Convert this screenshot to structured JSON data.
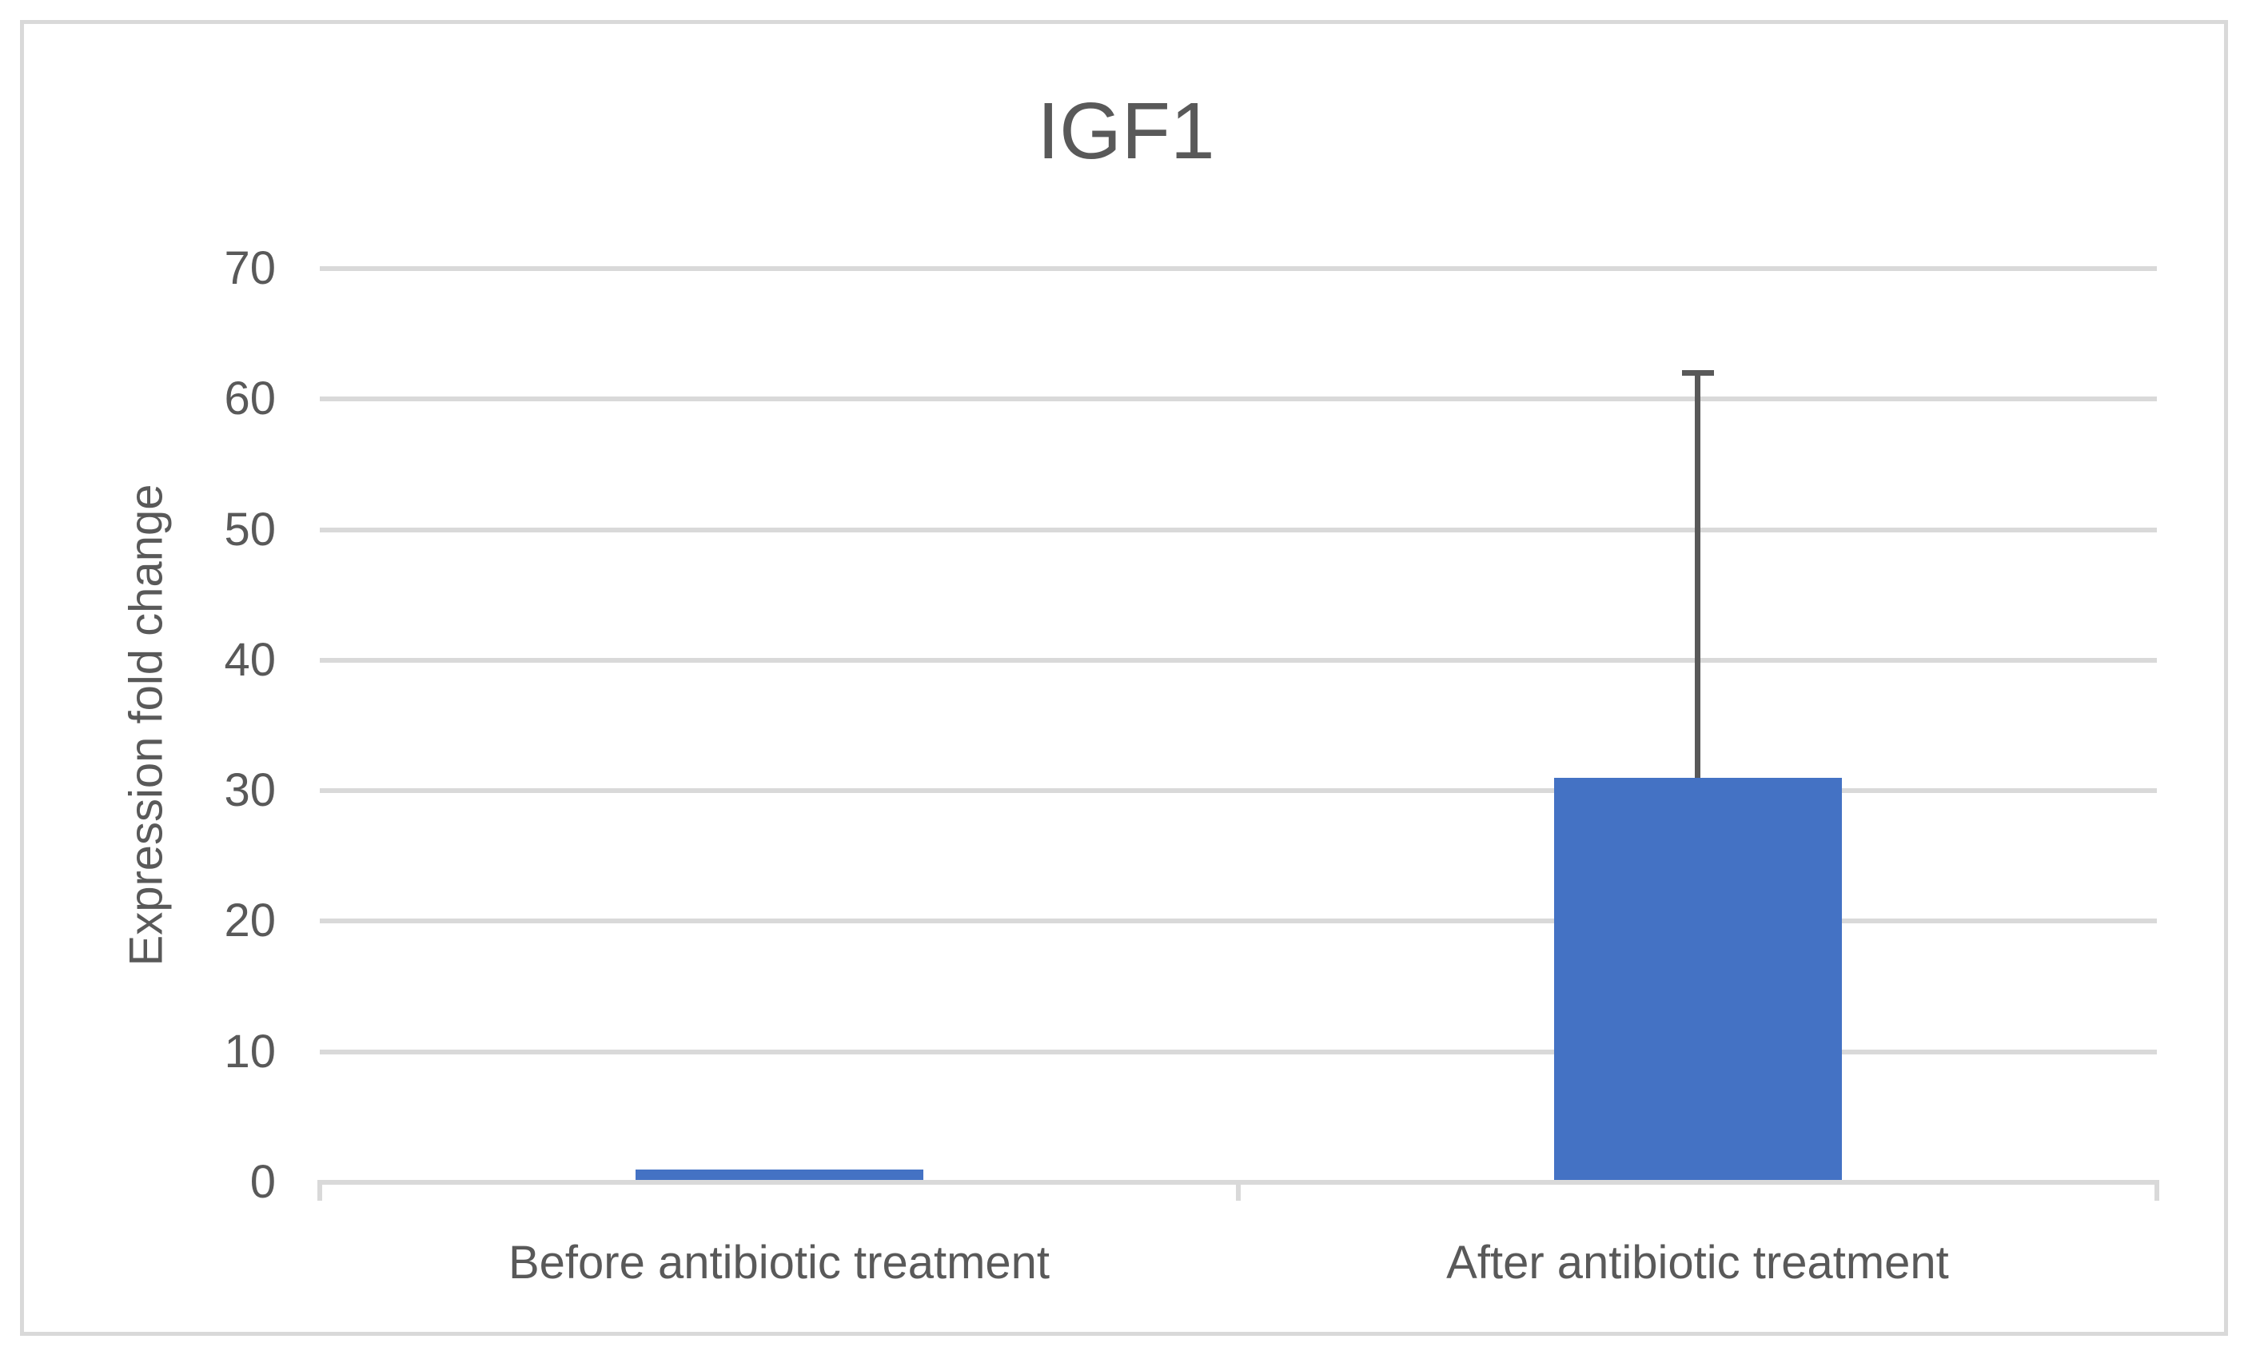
{
  "chart_data": {
    "type": "bar",
    "title": "IGF1",
    "xlabel": "",
    "ylabel": "Expression fold change",
    "categories": [
      "Before antibiotic treatment",
      "After antibiotic treatment"
    ],
    "values": [
      1,
      31
    ],
    "error_plus": [
      0,
      31
    ],
    "error_bar_tops": [
      null,
      62
    ],
    "ylim": [
      0,
      70
    ],
    "yticks": [
      0,
      10,
      20,
      30,
      40,
      50,
      60,
      70
    ],
    "grid": true,
    "legend_position": "none",
    "colors": {
      "bar": "#4472c4",
      "grid": "#d9d9d9",
      "axis": "#d9d9d9",
      "frame": "#d9d9d9",
      "text": "#595959",
      "error_bar": "#595959",
      "background": "#ffffff"
    }
  }
}
